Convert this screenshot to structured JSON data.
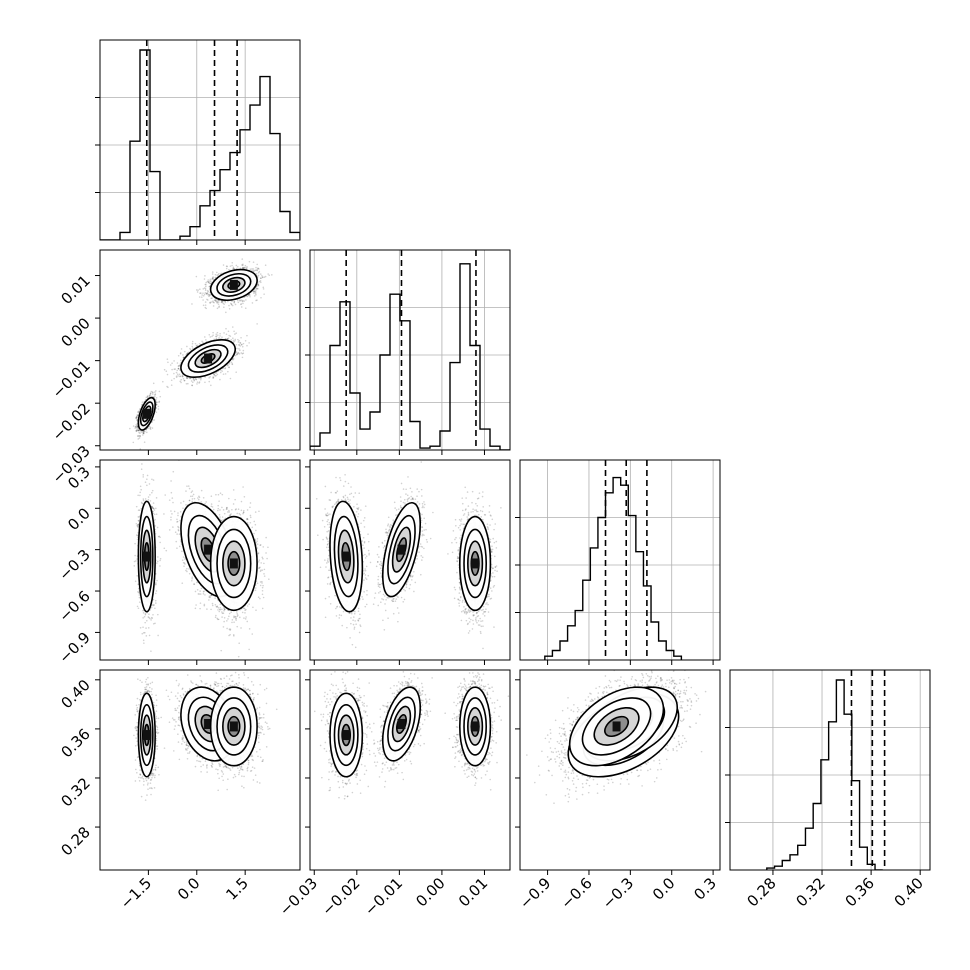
{
  "colors": {
    "frame": "#000000",
    "grid": "#b0b0b0",
    "fill": "#ffffff",
    "shade": "#000000",
    "points": "#000000"
  },
  "chart_data": {
    "type": "corner",
    "grid": true,
    "parameters": [
      {
        "range": [
          -3.0,
          3.2
        ],
        "ticks": [
          -1.5,
          0.0,
          1.5
        ],
        "tick_labels": [
          "−1.5",
          "0.0",
          "1.5"
        ],
        "quantiles": [
          -1.55,
          0.55,
          1.25
        ],
        "hist": {
          "edges_start": -3.0,
          "bin_width": 0.31,
          "counts": [
            0,
            0,
            0.04,
            0.52,
            1.0,
            0.36,
            0,
            0,
            0.02,
            0.07,
            0.18,
            0.26,
            0.37,
            0.46,
            0.58,
            0.71,
            0.86,
            0.56,
            0.15,
            0.04,
            0.01
          ]
        }
      },
      {
        "range": [
          -0.031,
          0.016
        ],
        "ticks": [
          -0.03,
          -0.02,
          -0.01,
          0.0,
          0.01
        ],
        "tick_labels": [
          "−0.03",
          "−0.02",
          "−0.01",
          "0.00",
          "0.01"
        ],
        "quantiles": [
          -0.0225,
          -0.0095,
          0.008
        ],
        "hist": {
          "edges_start": -0.031,
          "bin_width": 0.00235,
          "counts": [
            0.02,
            0.09,
            0.55,
            0.78,
            0.3,
            0.11,
            0.2,
            0.5,
            0.82,
            0.68,
            0.15,
            0.01,
            0.02,
            0.1,
            0.46,
            0.98,
            0.55,
            0.11,
            0.02,
            0
          ]
        }
      },
      {
        "range": [
          -1.1,
          0.35
        ],
        "ticks": [
          -0.9,
          -0.6,
          -0.3,
          0.0,
          0.3
        ],
        "tick_labels": [
          "−0.9",
          "−0.6",
          "−0.3",
          "0.0",
          "0.3"
        ],
        "quantiles": [
          -0.48,
          -0.33,
          -0.18
        ],
        "hist": {
          "edges_start": -0.92,
          "bin_width": 0.055,
          "counts": [
            0.02,
            0.05,
            0.1,
            0.18,
            0.26,
            0.42,
            0.59,
            0.75,
            0.88,
            0.96,
            0.92,
            0.76,
            0.57,
            0.39,
            0.2,
            0.1,
            0.05,
            0.02
          ]
        }
      },
      {
        "range": [
          0.245,
          0.408
        ],
        "ticks": [
          0.28,
          0.32,
          0.36,
          0.4
        ],
        "tick_labels": [
          "0.28",
          "0.32",
          "0.36",
          "0.40"
        ],
        "quantiles": [
          0.344,
          0.361,
          0.371
        ],
        "hist": {
          "edges_start": 0.275,
          "bin_width": 0.0063,
          "counts": [
            0.01,
            0.02,
            0.05,
            0.08,
            0.13,
            0.22,
            0.35,
            0.58,
            0.78,
            1.0,
            0.82,
            0.47,
            0.12,
            0.03,
            0
          ]
        }
      }
    ],
    "clusters": [
      {
        "mean": [
          -1.55,
          -0.0225,
          -0.35,
          0.355
        ],
        "sd": [
          0.13,
          0.0019,
          0.2,
          0.017
        ],
        "weight": 0.28
      },
      {
        "mean": [
          0.35,
          -0.0095,
          -0.3,
          0.364
        ],
        "sd": [
          0.42,
          0.0022,
          0.17,
          0.015
        ],
        "weight": 0.34
      },
      {
        "mean": [
          1.15,
          0.0078,
          -0.4,
          0.362
        ],
        "sd": [
          0.36,
          0.0018,
          0.17,
          0.016
        ],
        "weight": 0.38
      }
    ],
    "correlations": [
      {
        "pair": [
          0,
          1
        ],
        "cluster": 0,
        "rho": 0.55
      },
      {
        "pair": [
          0,
          1
        ],
        "cluster": 1,
        "rho": 0.5
      },
      {
        "pair": [
          0,
          1
        ],
        "cluster": 2,
        "rho": 0.3
      },
      {
        "pair": [
          0,
          2
        ],
        "cluster": 1,
        "rho": -0.45
      },
      {
        "pair": [
          1,
          2
        ],
        "cluster": 0,
        "rho": -0.2
      },
      {
        "pair": [
          1,
          2
        ],
        "cluster": 1,
        "rho": 0.55
      },
      {
        "pair": [
          0,
          3
        ],
        "cluster": 1,
        "rho": -0.25
      },
      {
        "pair": [
          1,
          3
        ],
        "cluster": 1,
        "rho": 0.45
      },
      {
        "pair": [
          2,
          3
        ],
        "cluster": 0,
        "rho": 0.45
      },
      {
        "pair": [
          2,
          3
        ],
        "cluster": 1,
        "rho": 0.45
      },
      {
        "pair": [
          2,
          3
        ],
        "cluster": 2,
        "rho": 0.45
      }
    ]
  }
}
